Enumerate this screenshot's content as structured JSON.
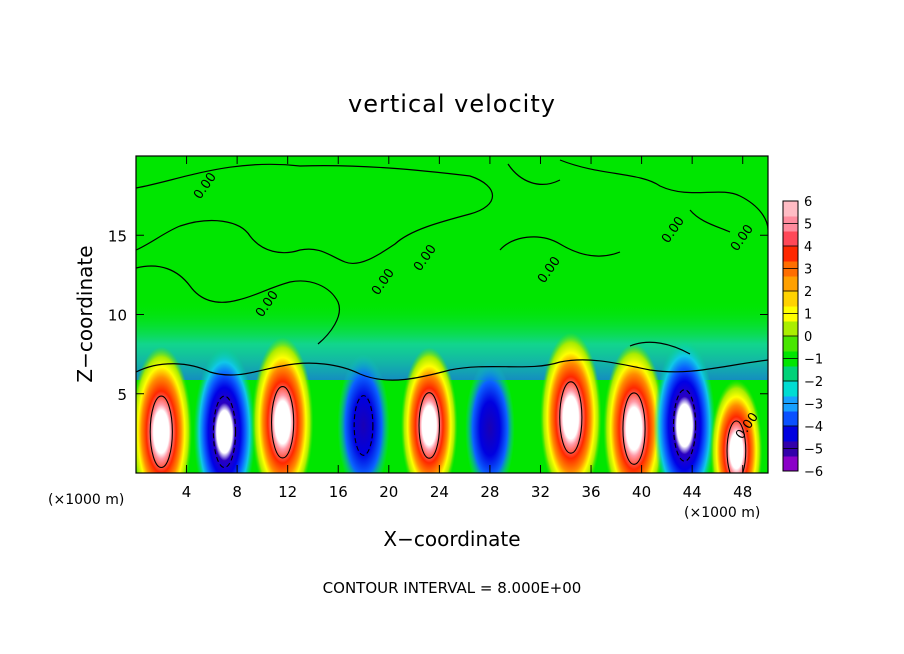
{
  "chart_data": {
    "type": "heatmap",
    "title": "vertical velocity",
    "xlabel": "X−coordinate",
    "ylabel": "Z−coordinate",
    "x_unit_label": "(×1000 m)",
    "y_unit_label": "(×1000 m)",
    "footer": "CONTOUR INTERVAL = 8.000E+00",
    "x_ticks": [
      "4",
      "8",
      "12",
      "16",
      "20",
      "24",
      "28",
      "32",
      "36",
      "40",
      "44",
      "48"
    ],
    "y_ticks": [
      "5",
      "10",
      "15"
    ],
    "xlim": [
      0,
      50
    ],
    "ylim": [
      0,
      20
    ],
    "colorbar": {
      "labels": [
        "6",
        "5",
        "4",
        "3",
        "2",
        "1",
        "0",
        "−1",
        "−2",
        "−3",
        "−4",
        "−5",
        "−6"
      ],
      "range": [
        -6,
        6
      ],
      "colors": [
        "#8b00c8",
        "#3300aa",
        "#0000e0",
        "#0a50ff",
        "#18a0ff",
        "#00dcd2",
        "#00d278",
        "#00e600",
        "#48e600",
        "#aaee00",
        "#ffff00",
        "#ffd200",
        "#ffa000",
        "#ff6e00",
        "#ff2800",
        "#ff4858",
        "#ff8c9e",
        "#ffbcc4"
      ]
    },
    "contour_labels": [
      "0.00",
      "0.00",
      "0.00",
      "0.00",
      "0.00",
      "0.00",
      "0.00",
      "0.00"
    ],
    "field": {
      "description": "Updraft (+) and downdraft (−) cells near the surface, weak values aloft",
      "cells": [
        {
          "x": 2,
          "z": 2.6,
          "w": 7
        },
        {
          "x": 7,
          "z": 2.6,
          "w": -7
        },
        {
          "x": 11.6,
          "z": 3.2,
          "w": 7
        },
        {
          "x": 18,
          "z": 3.0,
          "w": -5
        },
        {
          "x": 23.2,
          "z": 3.0,
          "w": 6
        },
        {
          "x": 28,
          "z": 2.8,
          "w": -4.5
        },
        {
          "x": 34.4,
          "z": 3.5,
          "w": 7
        },
        {
          "x": 39.4,
          "z": 2.8,
          "w": 7
        },
        {
          "x": 43.4,
          "z": 3.0,
          "w": -7
        },
        {
          "x": 47.5,
          "z": 1.4,
          "w": 5
        }
      ]
    }
  }
}
